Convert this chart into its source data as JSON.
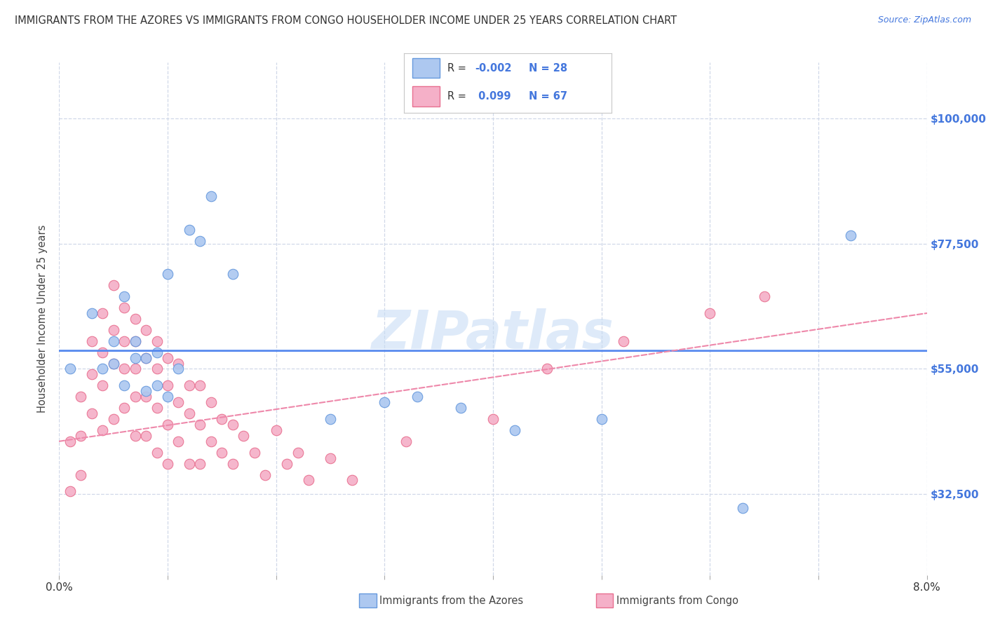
{
  "title": "IMMIGRANTS FROM THE AZORES VS IMMIGRANTS FROM CONGO HOUSEHOLDER INCOME UNDER 25 YEARS CORRELATION CHART",
  "source": "Source: ZipAtlas.com",
  "ylabel": "Householder Income Under 25 years",
  "xlim": [
    0.0,
    0.08
  ],
  "ylim": [
    18000,
    110000
  ],
  "yticks": [
    32500,
    55000,
    77500,
    100000
  ],
  "ytick_labels": [
    "$32,500",
    "$55,000",
    "$77,500",
    "$100,000"
  ],
  "xticks": [
    0.0,
    0.01,
    0.02,
    0.03,
    0.04,
    0.05,
    0.06,
    0.07,
    0.08
  ],
  "xtick_labels": [
    "0.0%",
    "",
    "",
    "",
    "",
    "",
    "",
    "",
    "8.0%"
  ],
  "azores_color": "#adc8f0",
  "congo_color": "#f5b0c8",
  "azores_edge_color": "#6699dd",
  "congo_edge_color": "#e87090",
  "azores_line_color": "#5588ee",
  "congo_line_color": "#ee88aa",
  "watermark": "ZIPatlas",
  "background_color": "#ffffff",
  "grid_color": "#d0d8e8",
  "azores_r": "-0.002",
  "azores_n": "28",
  "congo_r": "0.099",
  "congo_n": "67",
  "azores_points_x": [
    0.001,
    0.003,
    0.004,
    0.005,
    0.005,
    0.006,
    0.006,
    0.007,
    0.007,
    0.008,
    0.008,
    0.009,
    0.009,
    0.01,
    0.01,
    0.011,
    0.012,
    0.013,
    0.014,
    0.016,
    0.025,
    0.03,
    0.033,
    0.037,
    0.042,
    0.05,
    0.063,
    0.073
  ],
  "azores_points_y": [
    55000,
    65000,
    55000,
    60000,
    56000,
    68000,
    52000,
    60000,
    57000,
    57000,
    51000,
    58000,
    52000,
    72000,
    50000,
    55000,
    80000,
    78000,
    86000,
    72000,
    46000,
    49000,
    50000,
    48000,
    44000,
    46000,
    30000,
    79000
  ],
  "congo_points_x": [
    0.001,
    0.001,
    0.002,
    0.002,
    0.002,
    0.003,
    0.003,
    0.003,
    0.004,
    0.004,
    0.004,
    0.004,
    0.005,
    0.005,
    0.005,
    0.005,
    0.006,
    0.006,
    0.006,
    0.006,
    0.007,
    0.007,
    0.007,
    0.007,
    0.007,
    0.008,
    0.008,
    0.008,
    0.008,
    0.009,
    0.009,
    0.009,
    0.009,
    0.01,
    0.01,
    0.01,
    0.01,
    0.011,
    0.011,
    0.011,
    0.012,
    0.012,
    0.012,
    0.013,
    0.013,
    0.013,
    0.014,
    0.014,
    0.015,
    0.015,
    0.016,
    0.016,
    0.017,
    0.018,
    0.019,
    0.02,
    0.021,
    0.022,
    0.023,
    0.025,
    0.027,
    0.032,
    0.04,
    0.045,
    0.052,
    0.06,
    0.065
  ],
  "congo_points_y": [
    42000,
    33000,
    50000,
    43000,
    36000,
    60000,
    54000,
    47000,
    65000,
    58000,
    52000,
    44000,
    70000,
    62000,
    56000,
    46000,
    66000,
    60000,
    55000,
    48000,
    64000,
    60000,
    55000,
    50000,
    43000,
    62000,
    57000,
    50000,
    43000,
    60000,
    55000,
    48000,
    40000,
    57000,
    52000,
    45000,
    38000,
    56000,
    49000,
    42000,
    52000,
    47000,
    38000,
    52000,
    45000,
    38000,
    49000,
    42000,
    46000,
    40000,
    45000,
    38000,
    43000,
    40000,
    36000,
    44000,
    38000,
    40000,
    35000,
    39000,
    35000,
    42000,
    46000,
    55000,
    60000,
    65000,
    68000
  ]
}
